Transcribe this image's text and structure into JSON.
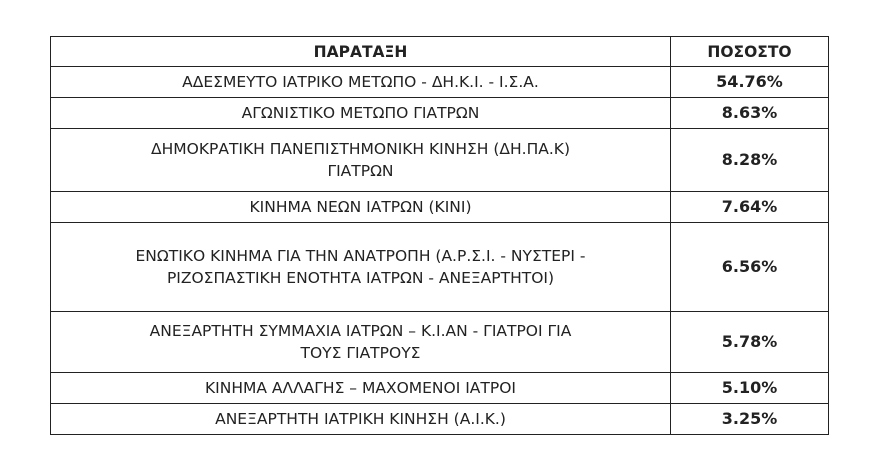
{
  "table": {
    "headers": [
      "ΠΑΡΑΤΑΞΗ",
      "ΠΟΣΟΣΤΟ"
    ],
    "rows": [
      {
        "name": "ΑΔΕΣΜΕΥΤΟ ΙΑΤΡΙΚΟ ΜΕΤΩΠΟ - ΔΗ.Κ.Ι. - Ι.Σ.Α.",
        "percent": "54.76%"
      },
      {
        "name": "ΑΓΩΝΙΣΤΙΚΟ ΜΕΤΩΠΟ ΓΙΑΤΡΩΝ",
        "percent": "8.63%"
      },
      {
        "name": "ΔΗΜΟΚΡΑΤΙΚΗ ΠΑΝΕΠΙΣΤΗΜΟΝΙΚΗ ΚΙΝΗΣΗ (ΔΗ.ΠΑ.Κ)\nΓΙΑΤΡΩΝ",
        "percent": "8.28%"
      },
      {
        "name": "ΚΙΝΗΜΑ ΝΕΩΝ ΙΑΤΡΩΝ (ΚΙΝΙ)",
        "percent": "7.64%"
      },
      {
        "name": "ΕΝΩΤΙΚΟ ΚΙΝΗΜΑ ΓΙΑ ΤΗΝ ΑΝΑΤΡΟΠΗ (Α.Ρ.Σ.Ι. - ΝΥΣΤΕΡΙ -\nΡΙΖΟΣΠΑΣΤΙΚΗ ΕΝΟΤΗΤΑ ΙΑΤΡΩΝ - ΑΝΕΞΑΡΤΗΤΟΙ)",
        "percent": "6.56%"
      },
      {
        "name": "ΑΝΕΞΑΡΤΗΤΗ ΣΥΜΜΑΧΙΑ ΙΑΤΡΩΝ – Κ.Ι.ΑΝ - ΓΙΑΤΡΟΙ ΓΙΑ\nΤΟΥΣ ΓΙΑΤΡΟΥΣ",
        "percent": "5.78%"
      },
      {
        "name": "ΚΙΝΗΜΑ ΑΛΛΑΓΗΣ – ΜΑΧΟΜΕΝΟΙ ΙΑΤΡΟΙ",
        "percent": "5.10%"
      },
      {
        "name": "ΑΝΕΞΑΡΤΗΤΗ ΙΑΤΡΙΚΗ ΚΙΝΗΣΗ (Α.Ι.Κ.)",
        "percent": "3.25%"
      }
    ]
  }
}
